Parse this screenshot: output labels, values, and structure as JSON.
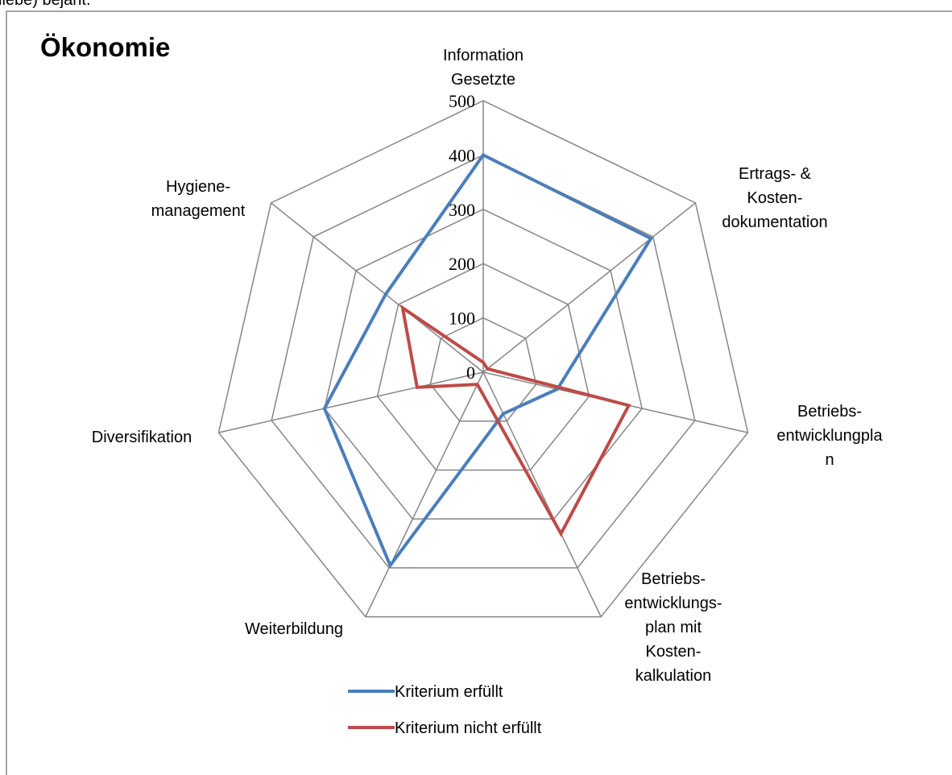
{
  "header_fragment": "liebe) bejaht.",
  "chart_data": {
    "type": "radar",
    "title": "Ökonomie",
    "categories": [
      "Information\nGesetzte",
      "Ertrags- &\nKosten-\ndokumentation",
      "Betriebs-\nentwicklungpla\nn",
      "Betriebs-\nentwicklungs-\nplan  mit\nKosten-\nkalkulation",
      "Weiterbildung",
      "Diversifikation",
      "Hygiene-\nmanagement"
    ],
    "series": [
      {
        "name": "Kriterium erfüllt",
        "color": "#4a7ebb",
        "values": [
          400,
          395,
          140,
          85,
          395,
          300,
          230
        ]
      },
      {
        "name": "Kriterium nicht erfüllt",
        "color": "#be4b48",
        "values": [
          18,
          10,
          275,
          330,
          25,
          125,
          190
        ]
      }
    ],
    "ylim": [
      0,
      500
    ],
    "yticks": [
      0,
      100,
      200,
      300,
      400,
      500
    ],
    "grid": true,
    "legend": "bottom"
  }
}
